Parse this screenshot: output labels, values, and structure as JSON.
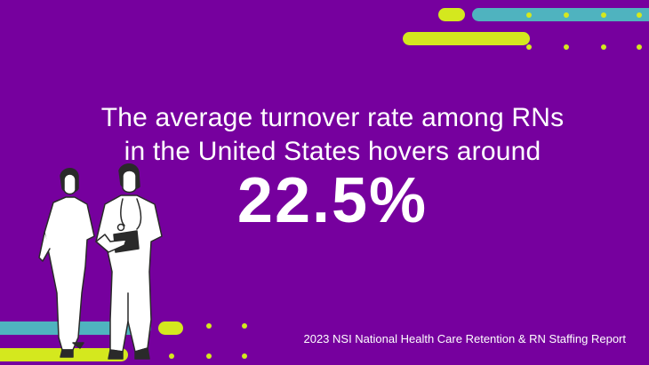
{
  "headline": {
    "line1": "The average turnover rate among RNs",
    "line2": "in the United States hovers around"
  },
  "stat": {
    "value": "22.5%"
  },
  "source": "2023 NSI National Health Care Retention & RN Staffing Report",
  "colors": {
    "background": "#76009e",
    "accent_yellow": "#d4e81e",
    "accent_teal": "#4fb3bf",
    "text": "#ffffff"
  }
}
